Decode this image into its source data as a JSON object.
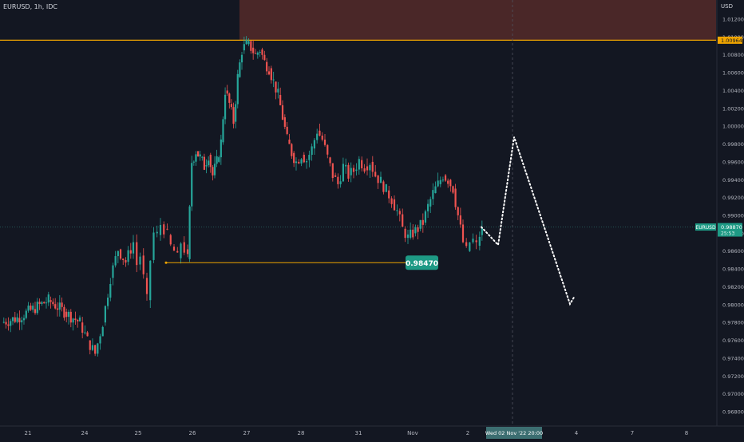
{
  "header": {
    "symbol_line": "EURUSD, 1h, IDC",
    "currency": "USD"
  },
  "colors": {
    "background": "#131722",
    "up": "#26a69a",
    "down": "#ef5350",
    "resistance_zone": "#4a2728",
    "level_line": "#f0a500",
    "price_label": "#1e9a85",
    "projection": "#ffffff"
  },
  "chart_data": {
    "type": "candlestick",
    "symbol": "EURUSD",
    "interval": "1h",
    "source": "IDC",
    "y_label": "USD",
    "ylim": [
      0.9669,
      1.0128
    ],
    "y_ticks": [
      "1.01200",
      "1.01000",
      "1.00800",
      "1.00600",
      "1.00400",
      "1.00200",
      "1.00000",
      "0.99800",
      "0.99600",
      "0.99400",
      "0.99200",
      "0.99000",
      "0.98800",
      "0.98600",
      "0.98400",
      "0.98200",
      "0.98000",
      "0.97800",
      "0.97600",
      "0.97400",
      "0.97200",
      "0.97000",
      "0.96800"
    ],
    "x_ticks": [
      "21",
      "24",
      "25",
      "26",
      "27",
      "28",
      "31",
      "Nov",
      "2",
      "4",
      "7",
      "8"
    ],
    "close_path": [
      [
        "21",
        0.9785
      ],
      [
        "21",
        0.9795
      ],
      [
        "21",
        0.9805
      ],
      [
        "21",
        0.9792
      ],
      [
        "21",
        0.978
      ],
      [
        "24",
        0.976
      ],
      [
        "24",
        0.9745
      ],
      [
        "24",
        0.978
      ],
      [
        "24",
        0.983
      ],
      [
        "24",
        0.9862
      ],
      [
        "24",
        0.9848
      ],
      [
        "24",
        0.987
      ],
      [
        "25",
        0.9845
      ],
      [
        "25",
        0.9855
      ],
      [
        "25",
        0.983
      ],
      [
        "25",
        0.9805
      ],
      [
        "25",
        0.985
      ],
      [
        "25",
        0.988
      ],
      [
        "25",
        0.9878
      ],
      [
        "25",
        0.989
      ],
      [
        "25",
        0.9885
      ],
      [
        "25",
        0.9878
      ],
      [
        "25",
        0.9865
      ],
      [
        "25",
        0.986
      ],
      [
        "25",
        0.9852
      ],
      [
        "25",
        0.987
      ],
      [
        "25",
        0.9862
      ],
      [
        "25",
        0.9851
      ],
      [
        "26",
        0.996
      ],
      [
        "26",
        0.9972
      ],
      [
        "26",
        0.9965
      ],
      [
        "26",
        0.9955
      ],
      [
        "26",
        0.9968
      ],
      [
        "26",
        0.9945
      ],
      [
        "26",
        0.996
      ],
      [
        "26",
        0.9982
      ],
      [
        "26",
        1.004
      ],
      [
        "26",
        1.0025
      ],
      [
        "26",
        1.0005
      ],
      [
        "26",
        1.0055
      ],
      [
        "26",
        1.0085
      ],
      [
        "27",
        1.0092
      ],
      [
        "27",
        1.0088
      ],
      [
        "27",
        1.008
      ],
      [
        "27",
        1.0086
      ],
      [
        "27",
        1.0072
      ],
      [
        "27",
        1.0065
      ],
      [
        "27",
        1.005
      ],
      [
        "27",
        1.0035
      ],
      [
        "27",
        1.001
      ],
      [
        "27",
        0.9985
      ],
      [
        "27",
        0.997
      ],
      [
        "27",
        0.996
      ],
      [
        "28",
        0.9968
      ],
      [
        "28",
        0.9962
      ],
      [
        "28",
        0.9975
      ],
      [
        "28",
        0.9995
      ],
      [
        "28",
        0.9985
      ],
      [
        "28",
        0.9965
      ],
      [
        "28",
        0.9945
      ],
      [
        "28",
        0.9935
      ],
      [
        "28",
        0.9955
      ],
      [
        "28",
        0.9945
      ],
      [
        "28",
        0.995
      ],
      [
        "31",
        0.9962
      ],
      [
        "31",
        0.9955
      ],
      [
        "31",
        0.996
      ],
      [
        "31",
        0.9945
      ],
      [
        "31",
        0.9938
      ],
      [
        "31",
        0.9928
      ],
      [
        "31",
        0.9918
      ],
      [
        "31",
        0.9905
      ],
      [
        "31",
        0.9885
      ],
      [
        "31",
        0.9875
      ],
      [
        "Nov",
        0.988
      ],
      [
        "Nov",
        0.9885
      ],
      [
        "Nov",
        0.9892
      ],
      [
        "Nov",
        0.991
      ],
      [
        "Nov",
        0.9925
      ],
      [
        "Nov",
        0.9935
      ],
      [
        "Nov",
        0.9945
      ],
      [
        "Nov",
        0.994
      ],
      [
        "Nov",
        0.993
      ],
      [
        "Nov",
        0.99
      ],
      [
        "Nov",
        0.987
      ],
      [
        "2",
        0.986
      ],
      [
        "2",
        0.987
      ],
      [
        "2",
        0.9872
      ],
      [
        "2",
        0.9866
      ],
      [
        "2",
        0.9878
      ],
      [
        "2",
        0.9887
      ]
    ],
    "current_price": {
      "symbol": "EURUSD",
      "value": "0.98870",
      "countdown": "25:53"
    },
    "resistance_level": {
      "value": "1.00964"
    },
    "support_level": {
      "value": 0.9847,
      "label": "0.98470"
    },
    "crosshair_label": "Wed 02 Nov '22    20:00",
    "projection_path": [
      0.9887,
      0.987,
      0.9988,
      0.98,
      0.981
    ],
    "grid": false,
    "legend": "top-left"
  }
}
